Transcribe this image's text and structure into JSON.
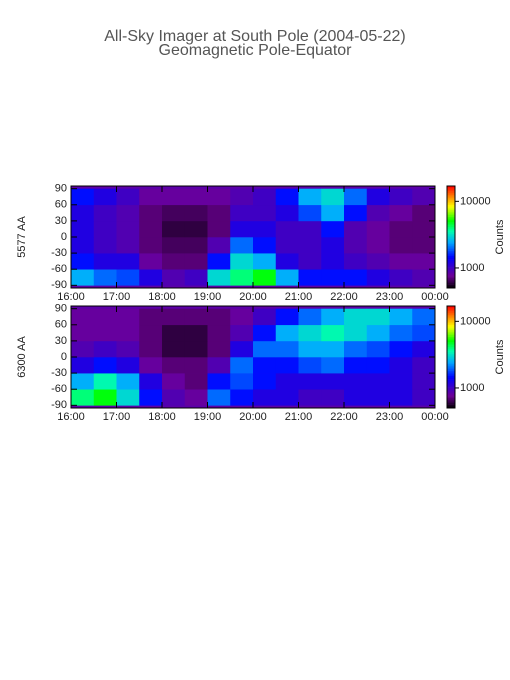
{
  "title": "All-Sky Imager at South Pole (2004-05-22)",
  "subtitle": "Geomagnetic Pole-Equator",
  "chart_data": [
    {
      "type": "heatmap",
      "ylabel": "5577 AA",
      "colorbar_label": "Counts",
      "xbins": [
        16,
        16.5,
        17,
        17.5,
        18,
        18.5,
        19,
        19.5,
        20,
        20.5,
        21,
        21.5,
        22,
        22.5,
        23,
        23.5,
        24
      ],
      "ybins": [
        -90,
        -60,
        -30,
        0,
        30,
        60,
        90
      ],
      "values": [
        [
          2500,
          2000,
          1800,
          1200,
          900,
          1000,
          3000,
          4000,
          5000,
          2500,
          1500,
          1500,
          1500,
          1200,
          1000,
          900
        ],
        [
          1500,
          1200,
          1200,
          800,
          700,
          700,
          1500,
          3000,
          2500,
          1200,
          1000,
          1200,
          1000,
          900,
          800,
          800
        ],
        [
          1200,
          1000,
          900,
          700,
          650,
          650,
          900,
          2000,
          1500,
          1000,
          1000,
          1200,
          900,
          800,
          700,
          700
        ],
        [
          1200,
          1000,
          900,
          700,
          600,
          600,
          700,
          1200,
          1200,
          1000,
          1000,
          1500,
          900,
          800,
          700,
          700
        ],
        [
          1200,
          1000,
          900,
          700,
          650,
          650,
          700,
          1000,
          1000,
          1200,
          1800,
          2500,
          1500,
          900,
          800,
          700
        ],
        [
          1500,
          1200,
          1000,
          800,
          800,
          800,
          800,
          900,
          1000,
          1500,
          2500,
          3000,
          2000,
          1200,
          1000,
          900
        ]
      ],
      "xlim": [
        16,
        24
      ],
      "xticks": [
        {
          "value": 16,
          "label": "16:00"
        },
        {
          "value": 17,
          "label": "17:00"
        },
        {
          "value": 18,
          "label": "18:00"
        },
        {
          "value": 19,
          "label": "19:00"
        },
        {
          "value": 20,
          "label": "20:00"
        },
        {
          "value": 21,
          "label": "21:00"
        },
        {
          "value": 22,
          "label": "22:00"
        },
        {
          "value": 23,
          "label": "23:00"
        },
        {
          "value": 24,
          "label": "00:00"
        }
      ],
      "ylim": [
        -95,
        95
      ],
      "yticks": [
        90,
        60,
        30,
        0,
        -30,
        -60,
        -90
      ],
      "clim": [
        500,
        17000
      ],
      "cticks": [
        1000,
        10000
      ],
      "log_color": true
    },
    {
      "type": "heatmap",
      "ylabel": "6300 AA",
      "colorbar_label": "Counts",
      "xbins": [
        16,
        16.5,
        17,
        17.5,
        18,
        18.5,
        19,
        19.5,
        20,
        20.5,
        21,
        21.5,
        22,
        22.5,
        23,
        23.5,
        24
      ],
      "ybins": [
        -90,
        -60,
        -30,
        0,
        30,
        60,
        90
      ],
      "values": [
        [
          4000,
          5000,
          3000,
          1500,
          900,
          800,
          2000,
          1500,
          1200,
          1200,
          1000,
          1000,
          1200,
          1200,
          1200,
          1000
        ],
        [
          2500,
          3500,
          2500,
          1200,
          800,
          700,
          1500,
          1800,
          1500,
          1200,
          1200,
          1200,
          1200,
          1200,
          1200,
          1000
        ],
        [
          1200,
          1500,
          1200,
          800,
          700,
          700,
          900,
          2000,
          1500,
          1500,
          1800,
          2000,
          1500,
          1500,
          1200,
          1000
        ],
        [
          900,
          1000,
          900,
          700,
          600,
          600,
          700,
          1200,
          2000,
          2000,
          2500,
          2500,
          2000,
          1800,
          1500,
          1200
        ],
        [
          800,
          800,
          800,
          700,
          600,
          600,
          700,
          900,
          1500,
          2500,
          3000,
          3500,
          3000,
          2500,
          2000,
          1800
        ],
        [
          800,
          800,
          800,
          700,
          700,
          700,
          700,
          800,
          1000,
          1500,
          2000,
          2500,
          3000,
          3000,
          2500,
          2000
        ]
      ],
      "xlim": [
        16,
        24
      ],
      "xticks": [
        {
          "value": 16,
          "label": "16:00"
        },
        {
          "value": 17,
          "label": "17:00"
        },
        {
          "value": 18,
          "label": "18:00"
        },
        {
          "value": 19,
          "label": "19:00"
        },
        {
          "value": 20,
          "label": "20:00"
        },
        {
          "value": 21,
          "label": "21:00"
        },
        {
          "value": 22,
          "label": "22:00"
        },
        {
          "value": 23,
          "label": "23:00"
        },
        {
          "value": 24,
          "label": "00:00"
        }
      ],
      "ylim": [
        -95,
        95
      ],
      "yticks": [
        90,
        60,
        30,
        0,
        -30,
        -60,
        -90
      ],
      "clim": [
        500,
        17000
      ],
      "cticks": [
        1000,
        10000
      ],
      "log_color": true
    }
  ]
}
